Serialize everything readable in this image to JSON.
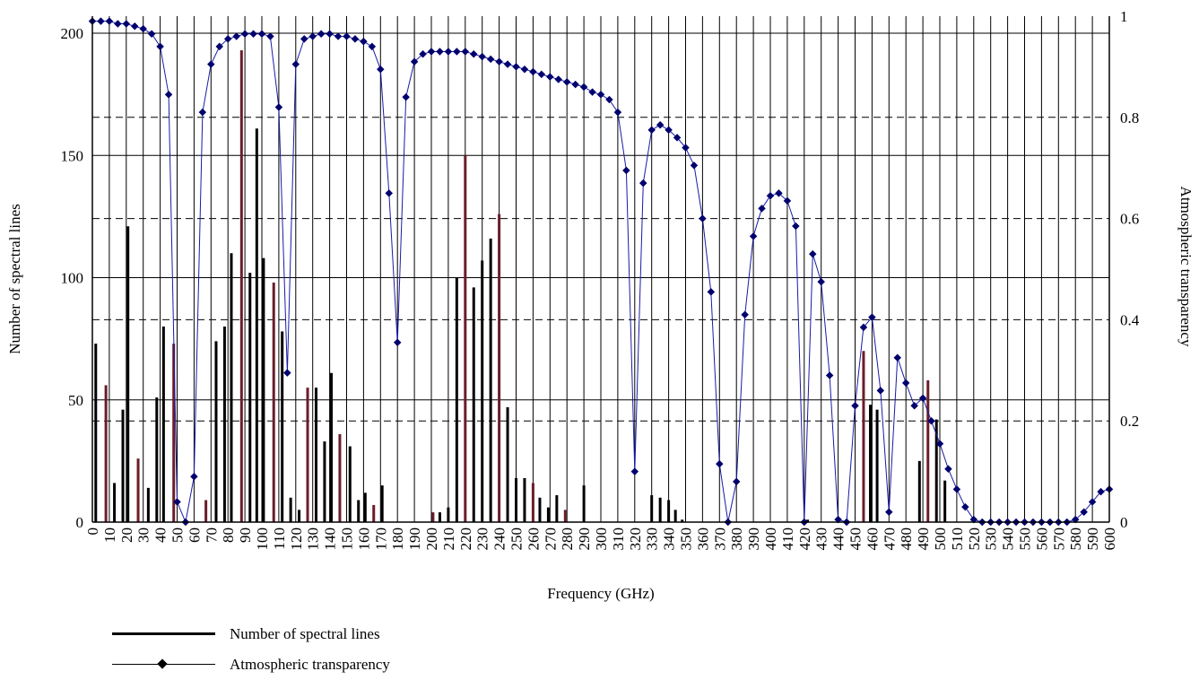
{
  "chart_data": {
    "type": "bar+line",
    "xlabel": "Frequency (GHz)",
    "ylabel": "Number of spectral lines",
    "y2label": "Atmospheric transparency",
    "xlim": [
      0,
      600
    ],
    "ylim": [
      0,
      200
    ],
    "y2lim": [
      0,
      1
    ],
    "x_ticks": [
      0,
      10,
      20,
      30,
      40,
      50,
      60,
      70,
      80,
      90,
      100,
      110,
      120,
      130,
      140,
      150,
      160,
      170,
      180,
      190,
      200,
      210,
      220,
      230,
      240,
      250,
      260,
      270,
      280,
      290,
      300,
      310,
      320,
      330,
      340,
      350,
      360,
      370,
      380,
      390,
      400,
      410,
      420,
      430,
      440,
      450,
      460,
      470,
      480,
      490,
      500,
      510,
      520,
      530,
      540,
      550,
      560,
      570,
      580,
      590,
      600
    ],
    "y_ticks": [
      0,
      50,
      100,
      150,
      200
    ],
    "y2_ticks": [
      0,
      0.2,
      0.4,
      0.6,
      0.8,
      1
    ],
    "grid": true,
    "legend_position": "bottom-left",
    "series": [
      {
        "name": "Number of spectral lines",
        "kind": "bar",
        "color": "#000000",
        "highlight_color": "#6b1d2a",
        "points": [
          [
            2,
            73,
            0
          ],
          [
            8,
            56,
            1
          ],
          [
            13,
            16,
            0
          ],
          [
            18,
            46,
            0
          ],
          [
            21,
            121,
            0
          ],
          [
            27,
            26,
            1
          ],
          [
            33,
            14,
            0
          ],
          [
            38,
            51,
            0
          ],
          [
            42,
            80,
            0
          ],
          [
            48,
            73,
            1
          ],
          [
            58,
            0,
            0
          ],
          [
            67,
            9,
            1
          ],
          [
            73,
            74,
            0
          ],
          [
            78,
            80,
            0
          ],
          [
            82,
            110,
            0
          ],
          [
            88,
            193,
            1
          ],
          [
            93,
            102,
            0
          ],
          [
            97,
            161,
            0
          ],
          [
            101,
            108,
            0
          ],
          [
            107,
            98,
            1
          ],
          [
            112,
            78,
            0
          ],
          [
            117,
            10,
            0
          ],
          [
            122,
            5,
            0
          ],
          [
            127,
            55,
            1
          ],
          [
            132,
            55,
            0
          ],
          [
            137,
            33,
            0
          ],
          [
            141,
            61,
            0
          ],
          [
            146,
            36,
            1
          ],
          [
            152,
            31,
            0
          ],
          [
            157,
            9,
            0
          ],
          [
            161,
            12,
            0
          ],
          [
            166,
            7,
            1
          ],
          [
            171,
            15,
            0
          ],
          [
            201,
            4,
            1
          ],
          [
            205,
            4,
            0
          ],
          [
            210,
            6,
            0
          ],
          [
            215,
            100,
            0
          ],
          [
            220,
            150,
            1
          ],
          [
            225,
            96,
            0
          ],
          [
            230,
            107,
            0
          ],
          [
            235,
            116,
            0
          ],
          [
            240,
            126,
            1
          ],
          [
            245,
            47,
            0
          ],
          [
            250,
            18,
            0
          ],
          [
            255,
            18,
            0
          ],
          [
            260,
            16,
            1
          ],
          [
            264,
            10,
            0
          ],
          [
            269,
            6,
            0
          ],
          [
            274,
            11,
            0
          ],
          [
            279,
            5,
            1
          ],
          [
            290,
            15,
            0
          ],
          [
            330,
            11,
            0
          ],
          [
            335,
            10,
            0
          ],
          [
            340,
            9,
            0
          ],
          [
            344,
            5,
            0
          ],
          [
            348,
            1,
            0
          ],
          [
            422,
            1,
            0
          ],
          [
            455,
            70,
            1
          ],
          [
            459,
            48,
            0
          ],
          [
            463,
            46,
            0
          ],
          [
            488,
            25,
            0
          ],
          [
            493,
            58,
            1
          ],
          [
            498,
            42,
            0
          ],
          [
            503,
            17,
            0
          ]
        ]
      },
      {
        "name": "Atmospheric transparency",
        "kind": "line",
        "color": "#1a1aa6",
        "marker_color": "#00006e",
        "x": [
          0,
          5,
          10,
          15,
          20,
          25,
          30,
          35,
          40,
          45,
          50,
          55,
          60,
          65,
          70,
          75,
          80,
          85,
          90,
          95,
          100,
          105,
          110,
          115,
          120,
          125,
          130,
          135,
          140,
          145,
          150,
          155,
          160,
          165,
          170,
          175,
          180,
          185,
          190,
          195,
          200,
          205,
          210,
          215,
          220,
          225,
          230,
          235,
          240,
          245,
          250,
          255,
          260,
          265,
          270,
          275,
          280,
          285,
          290,
          295,
          300,
          305,
          310,
          315,
          320,
          325,
          330,
          335,
          340,
          345,
          350,
          355,
          360,
          365,
          370,
          375,
          380,
          385,
          390,
          395,
          400,
          405,
          410,
          415,
          420,
          425,
          430,
          435,
          440,
          445,
          450,
          455,
          460,
          465,
          470,
          475,
          480,
          485,
          490,
          495,
          500,
          505,
          510,
          515,
          520,
          525,
          530,
          535,
          540,
          545,
          550,
          555,
          560,
          565,
          570,
          575,
          580,
          585,
          590,
          595,
          600
        ],
        "y": [
          0.99,
          0.99,
          0.99,
          0.985,
          0.985,
          0.98,
          0.975,
          0.965,
          0.94,
          0.845,
          0.04,
          0.0,
          0.09,
          0.81,
          0.905,
          0.94,
          0.955,
          0.96,
          0.965,
          0.965,
          0.965,
          0.96,
          0.82,
          0.295,
          0.905,
          0.955,
          0.96,
          0.965,
          0.965,
          0.96,
          0.96,
          0.955,
          0.95,
          0.94,
          0.895,
          0.65,
          0.355,
          0.84,
          0.91,
          0.925,
          0.93,
          0.93,
          0.93,
          0.93,
          0.93,
          0.925,
          0.92,
          0.915,
          0.91,
          0.905,
          0.9,
          0.895,
          0.89,
          0.885,
          0.88,
          0.875,
          0.87,
          0.865,
          0.86,
          0.85,
          0.845,
          0.835,
          0.81,
          0.695,
          0.1,
          0.67,
          0.775,
          0.785,
          0.775,
          0.76,
          0.74,
          0.705,
          0.6,
          0.455,
          0.115,
          0.0,
          0.08,
          0.41,
          0.565,
          0.62,
          0.645,
          0.65,
          0.635,
          0.585,
          0.0,
          0.53,
          0.475,
          0.29,
          0.005,
          0.0,
          0.23,
          0.385,
          0.405,
          0.26,
          0.02,
          0.325,
          0.275,
          0.23,
          0.245,
          0.2,
          0.155,
          0.105,
          0.065,
          0.03,
          0.005,
          0.0,
          0.0,
          0.0,
          0.0,
          0.0,
          0.0,
          0.0,
          0.0,
          0.0,
          0.0,
          0.0,
          0.005,
          0.02,
          0.04,
          0.06,
          0.065
        ]
      }
    ]
  }
}
